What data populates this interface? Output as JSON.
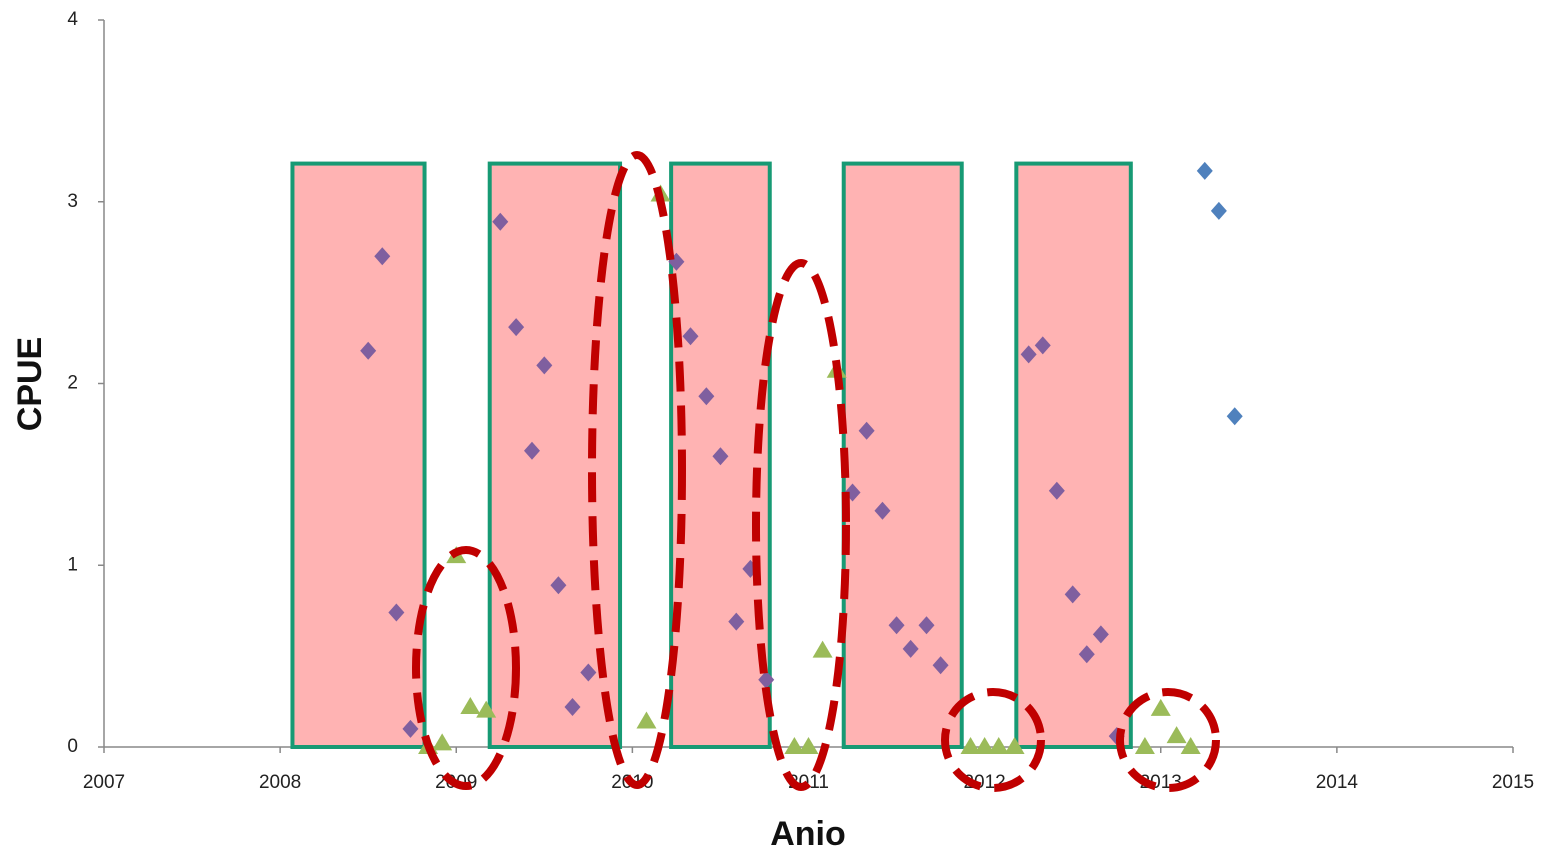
{
  "chart_data": {
    "type": "scatter",
    "xlabel": "Anio",
    "ylabel": "CPUE",
    "xlim": [
      2007,
      2015
    ],
    "xticks": [
      2007,
      2008,
      2009,
      2010,
      2011,
      2012,
      2013,
      2014,
      2015
    ],
    "ylim": [
      0,
      4
    ],
    "yticks": [
      0,
      1,
      2,
      3,
      4
    ],
    "grid": false,
    "highlight_fill": "#ffb3b3",
    "highlight_edge": "#179a74",
    "highlight_spans": [
      {
        "x": [
          2008.07,
          2008.82
        ],
        "top": 3.21
      },
      {
        "x": [
          2009.19,
          2009.93
        ],
        "top": 3.21
      },
      {
        "x": [
          2010.22,
          2010.78
        ],
        "top": 3.21
      },
      {
        "x": [
          2011.2,
          2011.87
        ],
        "top": 3.21
      },
      {
        "x": [
          2012.18,
          2012.83
        ],
        "top": 3.21
      }
    ],
    "series": [
      {
        "marker": "diamond",
        "color": "#7f5f9f",
        "x": [
          2008.5,
          2008.58,
          2008.66,
          2008.74,
          2009.25,
          2009.34,
          2009.43,
          2009.5,
          2009.58,
          2009.66,
          2009.75,
          2010.25,
          2010.33,
          2010.42,
          2010.5,
          2010.59,
          2010.67,
          2010.76,
          2011.25,
          2011.33,
          2011.42,
          2011.5,
          2011.58,
          2011.67,
          2011.75,
          2012.25,
          2012.33,
          2012.41,
          2012.5,
          2012.58,
          2012.66,
          2012.75
        ],
        "values": [
          2.18,
          2.7,
          0.74,
          0.1,
          2.89,
          2.31,
          1.63,
          2.1,
          0.89,
          0.22,
          0.41,
          2.67,
          2.26,
          1.93,
          1.6,
          0.69,
          0.98,
          0.37,
          1.4,
          1.74,
          1.3,
          0.67,
          0.54,
          0.67,
          0.45,
          2.16,
          2.21,
          1.41,
          0.84,
          0.51,
          0.62,
          0.06
        ]
      },
      {
        "marker": "diamond",
        "color": "#4f81bd",
        "x": [
          2013.25,
          2013.33,
          2013.42
        ],
        "values": [
          3.17,
          2.95,
          1.82
        ]
      },
      {
        "marker": "triangle",
        "color": "#9bbb59",
        "x": [
          2008.84,
          2008.92,
          2009.0,
          2009.08,
          2009.17,
          2010.08,
          2010.16,
          2010.92,
          2011.0,
          2011.08,
          2011.16,
          2011.92,
          2012.0,
          2012.08,
          2012.17,
          2012.91,
          2013.0,
          2013.09,
          2013.17
        ],
        "values": [
          0,
          0.02,
          1.05,
          0.22,
          0.2,
          0.14,
          3.04,
          0,
          0,
          0.53,
          2.07,
          0,
          0,
          0,
          0,
          0,
          0.21,
          0.06,
          0
        ]
      }
    ]
  }
}
